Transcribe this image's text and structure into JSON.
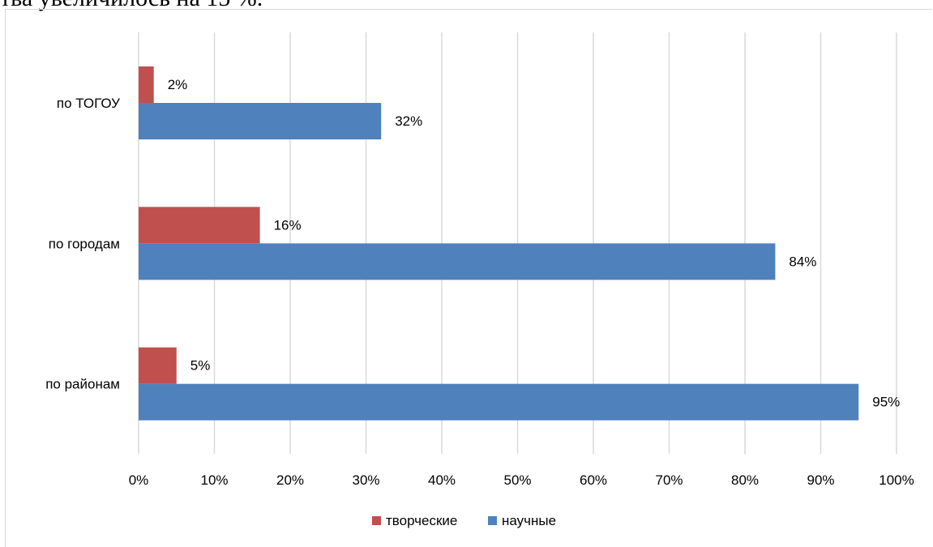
{
  "page_header_text": "тва увеличилось на 15 %.",
  "chart_data": {
    "type": "bar",
    "orientation": "horizontal",
    "categories": [
      "по ТОГОУ",
      "по городам",
      "по районам"
    ],
    "series": [
      {
        "name": "творческие",
        "values": [
          2,
          16,
          5
        ],
        "labels": [
          "2%",
          "16%",
          "5%"
        ],
        "color": "#c0504d"
      },
      {
        "name": "научные",
        "values": [
          32,
          84,
          95
        ],
        "labels": [
          "32%",
          "84%",
          "95%"
        ],
        "color": "#4f81bd"
      }
    ],
    "xticks": [
      "0%",
      "10%",
      "20%",
      "30%",
      "40%",
      "50%",
      "60%",
      "70%",
      "80%",
      "90%",
      "100%"
    ],
    "xlim": [
      0,
      100
    ],
    "grid": true,
    "legend_position": "bottom",
    "title": "",
    "xlabel": "",
    "ylabel": ""
  }
}
